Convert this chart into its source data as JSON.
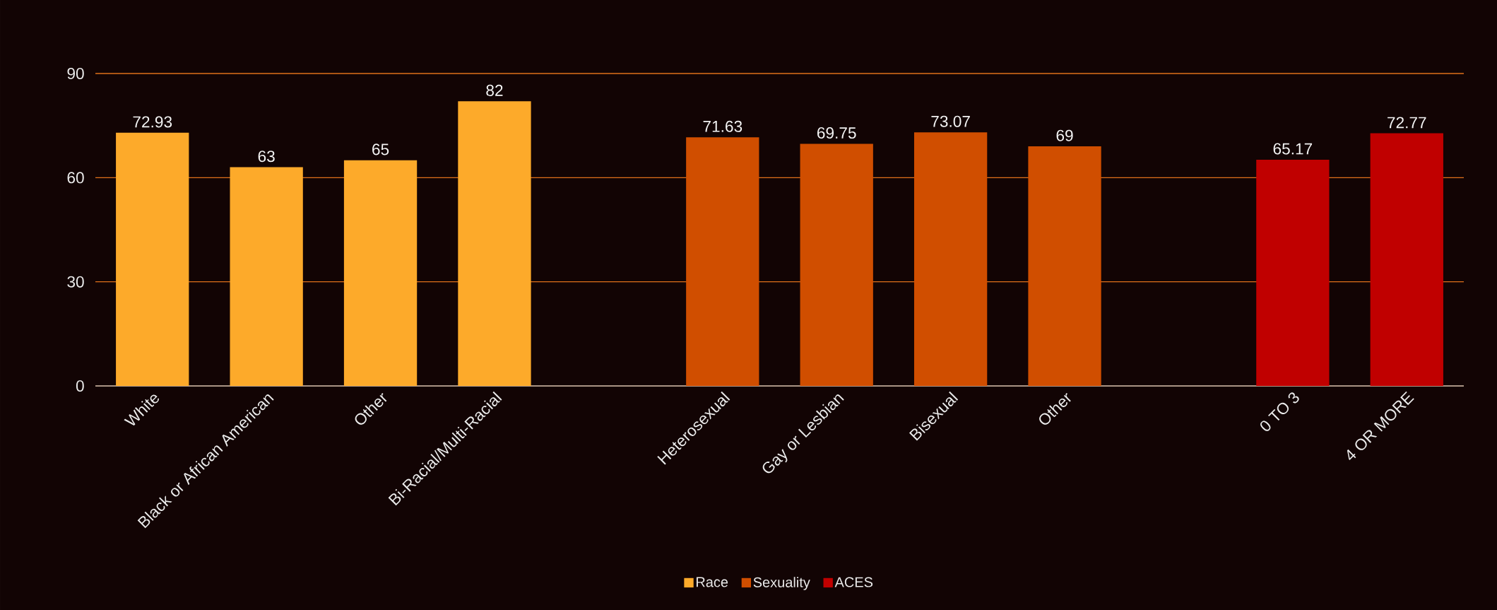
{
  "chart_data": {
    "type": "bar",
    "categories": [
      "White",
      "Black or African American",
      "Other",
      "Bi-Racial/Multi-Racial",
      null,
      "Heterosexual",
      "Gay or Lesbian",
      "Bisexual",
      "Other",
      null,
      "0 TO 3",
      "4 OR MORE"
    ],
    "series": [
      {
        "name": "Race",
        "color": "#fdaa2a",
        "values": [
          72.93,
          63,
          65,
          82,
          null,
          null,
          null,
          null,
          null,
          null,
          null,
          null
        ]
      },
      {
        "name": "Sexuality",
        "color": "#d04e00",
        "values": [
          null,
          null,
          null,
          null,
          null,
          71.63,
          69.75,
          73.07,
          69,
          null,
          null,
          null
        ]
      },
      {
        "name": "ACES",
        "color": "#c00000",
        "values": [
          null,
          null,
          null,
          null,
          null,
          null,
          null,
          null,
          null,
          null,
          65.17,
          72.77
        ]
      }
    ],
    "ylim": [
      0,
      90
    ],
    "yticks": [
      0,
      30,
      60,
      90
    ],
    "grid": "y",
    "legend": "bottom",
    "data_labels": true
  }
}
